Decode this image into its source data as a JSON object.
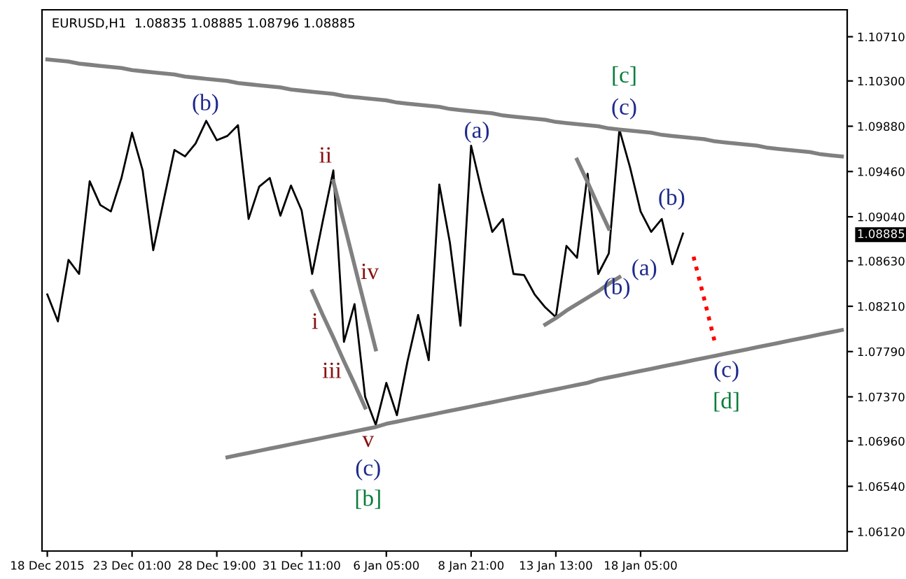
{
  "chart_data": {
    "type": "line",
    "categories": [
      "18 Dec 2015",
      null,
      null,
      null,
      null,
      null,
      null,
      null,
      "23 Dec 01:00",
      null,
      null,
      null,
      null,
      null,
      null,
      null,
      "28 Dec 19:00",
      null,
      null,
      null,
      null,
      null,
      null,
      null,
      "31 Dec 11:00",
      null,
      null,
      null,
      null,
      null,
      null,
      null,
      "6 Jan 05:00",
      null,
      null,
      null,
      null,
      null,
      null,
      null,
      "8 Jan 21:00",
      null,
      null,
      null,
      null,
      null,
      null,
      null,
      "13 Jan 13:00",
      null,
      null,
      null,
      null,
      null,
      null,
      null,
      "18 Jan 05:00",
      null,
      null,
      null,
      null,
      null,
      null,
      null,
      null,
      null,
      null,
      null,
      null,
      null,
      null,
      null,
      null,
      null,
      null,
      null
    ],
    "ylim": [
      1.0594,
      1.1096
    ],
    "yticks": [
      {
        "value": 1.0612,
        "label": "1.06120"
      },
      {
        "value": 1.0654,
        "label": "1.06540"
      },
      {
        "value": 1.0696,
        "label": "1.06960"
      },
      {
        "value": 1.0737,
        "label": "1.07370"
      },
      {
        "value": 1.0779,
        "label": "1.07790"
      },
      {
        "value": 1.0821,
        "label": "1.08210"
      },
      {
        "value": 1.0863,
        "label": "1.08630"
      },
      {
        "value": 1.08885,
        "label": "1.08885"
      },
      {
        "value": 1.0904,
        "label": "1.09040"
      },
      {
        "value": 1.0946,
        "label": "1.09460"
      },
      {
        "value": 1.0988,
        "label": "1.09880"
      },
      {
        "value": 1.103,
        "label": "1.10300"
      },
      {
        "value": 1.1071,
        "label": "1.10710"
      }
    ],
    "grid": false,
    "legend": false,
    "series": [
      {
        "color": "#000000",
        "line_style": "solid",
        "values": [
          1.0832,
          1.0807,
          1.0864,
          1.0851,
          1.0937,
          1.0915,
          1.0909,
          1.094,
          1.0982,
          1.0947,
          1.0873,
          1.092,
          1.0966,
          1.096,
          1.0972,
          1.0993,
          1.0975,
          1.0979,
          1.0989,
          1.0902,
          1.0932,
          1.094,
          1.0905,
          1.0933,
          1.091,
          1.0851,
          1.09,
          1.0947,
          1.0788,
          1.0823,
          1.0737,
          1.0711,
          1.075,
          1.072,
          1.077,
          1.0813,
          1.0771,
          1.0934,
          1.088,
          1.0803,
          1.097,
          1.0928,
          1.089,
          1.0902,
          1.0851,
          1.085,
          1.0832,
          1.082,
          1.0811,
          1.0877,
          1.0866,
          1.0944,
          1.0851,
          1.087,
          1.0985,
          1.095,
          1.0909,
          1.089,
          1.0902,
          1.086,
          1.08885,
          null,
          null,
          null,
          null,
          null,
          null,
          null,
          null,
          null,
          null,
          null,
          null,
          null,
          null,
          null
        ]
      },
      {
        "color": "#808080",
        "line_style": "solid",
        "values": [
          1.105,
          1.1049,
          1.1048,
          1.1046,
          1.1045,
          1.1044,
          1.1043,
          1.1042,
          1.104,
          1.1039,
          1.1038,
          1.1037,
          1.1036,
          1.1034,
          1.1033,
          1.1032,
          1.1031,
          1.103,
          1.1028,
          1.1027,
          1.1026,
          1.1025,
          1.1024,
          1.1022,
          1.1021,
          1.102,
          1.1019,
          1.1018,
          1.1016,
          1.1015,
          1.1014,
          1.1013,
          1.1012,
          1.101,
          1.1009,
          1.1008,
          1.1007,
          1.1006,
          1.1004,
          1.1003,
          1.1002,
          1.1001,
          1.1,
          1.0998,
          1.0997,
          1.0996,
          1.0995,
          1.0994,
          1.0992,
          1.0991,
          1.099,
          1.0989,
          1.0988,
          1.0986,
          1.0985,
          1.0984,
          1.0983,
          1.0982,
          1.098,
          1.0979,
          1.0978,
          1.0977,
          1.0976,
          1.0974,
          1.0973,
          1.0972,
          1.0971,
          1.097,
          1.0968,
          1.0967,
          1.0966,
          1.0965,
          1.0964,
          1.0962,
          1.0961,
          1.096
        ]
      },
      {
        "color": "#808080",
        "line_style": "solid",
        "values": [
          null,
          null,
          null,
          null,
          null,
          null,
          null,
          null,
          null,
          null,
          null,
          null,
          null,
          null,
          null,
          null,
          null,
          1.0681,
          1.0683,
          1.0685,
          1.0687,
          1.0689,
          1.0691,
          1.0693,
          1.0695,
          1.0697,
          1.0699,
          1.0701,
          1.0703,
          1.0705,
          1.0707,
          1.0709,
          1.0712,
          1.0714,
          1.0716,
          1.0718,
          1.072,
          1.0722,
          1.0724,
          1.0726,
          1.0728,
          1.073,
          1.0732,
          1.0734,
          1.0736,
          1.0738,
          1.074,
          1.0742,
          1.0744,
          1.0746,
          1.0748,
          1.075,
          1.0753,
          1.0755,
          1.0757,
          1.0759,
          1.0761,
          1.0763,
          1.0765,
          1.0767,
          1.0769,
          1.0771,
          1.0773,
          1.0775,
          1.0777,
          1.0779,
          1.0781,
          1.0783,
          1.0785,
          1.0787,
          1.0789,
          1.0791,
          1.0793,
          1.0795,
          1.0797,
          1.0799
        ]
      },
      {
        "color": "#808080",
        "line_style": "solid",
        "values": [
          null,
          null,
          null,
          null,
          null,
          null,
          null,
          null,
          null,
          null,
          null,
          null,
          null,
          null,
          null,
          null,
          null,
          null,
          null,
          null,
          null,
          null,
          null,
          null,
          null,
          null,
          null,
          1.0937,
          1.0898,
          1.0859,
          1.082,
          1.0781,
          null,
          null,
          null,
          null,
          null,
          null,
          null,
          null,
          null,
          null,
          null,
          null,
          null,
          null,
          null,
          null,
          null,
          null,
          null,
          null,
          null,
          null,
          null,
          null,
          null,
          null,
          null,
          null,
          null,
          null,
          null,
          null,
          null,
          null,
          null,
          null,
          null,
          null,
          null,
          null,
          null,
          null,
          null,
          null
        ]
      },
      {
        "color": "#808080",
        "line_style": "solid",
        "values": [
          null,
          null,
          null,
          null,
          null,
          null,
          null,
          null,
          null,
          null,
          null,
          null,
          null,
          null,
          null,
          null,
          null,
          null,
          null,
          null,
          null,
          null,
          null,
          null,
          null,
          1.0835,
          1.0813,
          1.0792,
          1.077,
          1.0749,
          1.0727,
          null,
          null,
          null,
          null,
          null,
          null,
          null,
          null,
          null,
          null,
          null,
          null,
          null,
          null,
          null,
          null,
          null,
          null,
          null,
          null,
          null,
          null,
          null,
          null,
          null,
          null,
          null,
          null,
          null,
          null,
          null,
          null,
          null,
          null,
          null,
          null,
          null,
          null,
          null,
          null,
          null,
          null,
          null,
          null,
          null
        ]
      },
      {
        "color": "#808080",
        "line_style": "solid",
        "values": [
          null,
          null,
          null,
          null,
          null,
          null,
          null,
          null,
          null,
          null,
          null,
          null,
          null,
          null,
          null,
          null,
          null,
          null,
          null,
          null,
          null,
          null,
          null,
          null,
          null,
          null,
          null,
          null,
          null,
          null,
          null,
          null,
          null,
          null,
          null,
          null,
          null,
          null,
          null,
          null,
          null,
          null,
          null,
          null,
          null,
          null,
          null,
          1.0804,
          1.081,
          1.0817,
          1.0823,
          1.0829,
          1.0835,
          1.0842,
          1.0848,
          null,
          null,
          null,
          null,
          null,
          null,
          null,
          null,
          null,
          null,
          null,
          null,
          null,
          null,
          null,
          null,
          null,
          null,
          null,
          null,
          null
        ]
      },
      {
        "color": "#808080",
        "line_style": "solid",
        "values": [
          null,
          null,
          null,
          null,
          null,
          null,
          null,
          null,
          null,
          null,
          null,
          null,
          null,
          null,
          null,
          null,
          null,
          null,
          null,
          null,
          null,
          null,
          null,
          null,
          null,
          null,
          null,
          null,
          null,
          null,
          null,
          null,
          null,
          null,
          null,
          null,
          null,
          null,
          null,
          null,
          null,
          null,
          null,
          null,
          null,
          null,
          null,
          null,
          null,
          null,
          1.0957,
          1.0936,
          1.0914,
          1.0893,
          null,
          null,
          null,
          null,
          null,
          null,
          null,
          null,
          null,
          null,
          null,
          null,
          null,
          null,
          null,
          null,
          null,
          null,
          null,
          null,
          null,
          null
        ]
      },
      {
        "color": "#ff0000",
        "line_style": "dotted",
        "values": [
          null,
          null,
          null,
          null,
          null,
          null,
          null,
          null,
          null,
          null,
          null,
          null,
          null,
          null,
          null,
          null,
          null,
          null,
          null,
          null,
          null,
          null,
          null,
          null,
          null,
          null,
          null,
          null,
          null,
          null,
          null,
          null,
          null,
          null,
          null,
          null,
          null,
          null,
          null,
          null,
          null,
          null,
          null,
          null,
          null,
          null,
          null,
          null,
          null,
          null,
          null,
          null,
          null,
          null,
          null,
          null,
          null,
          null,
          null,
          null,
          null,
          1.0867,
          1.0828,
          1.0788,
          null,
          null,
          null,
          null,
          null,
          null,
          null,
          null,
          null,
          null,
          null,
          null
        ]
      }
    ],
    "annotations": [
      "EURUSD,H1  1.08835 1.08885 1.08796 1.08885",
      "(b)",
      "ii",
      "iv",
      "i",
      "iii",
      "v",
      "(c)",
      "[b]",
      "(a)",
      "[c]",
      "(c)",
      "(b)",
      "(b)",
      "(a)",
      "(c)",
      "[d]"
    ]
  }
}
